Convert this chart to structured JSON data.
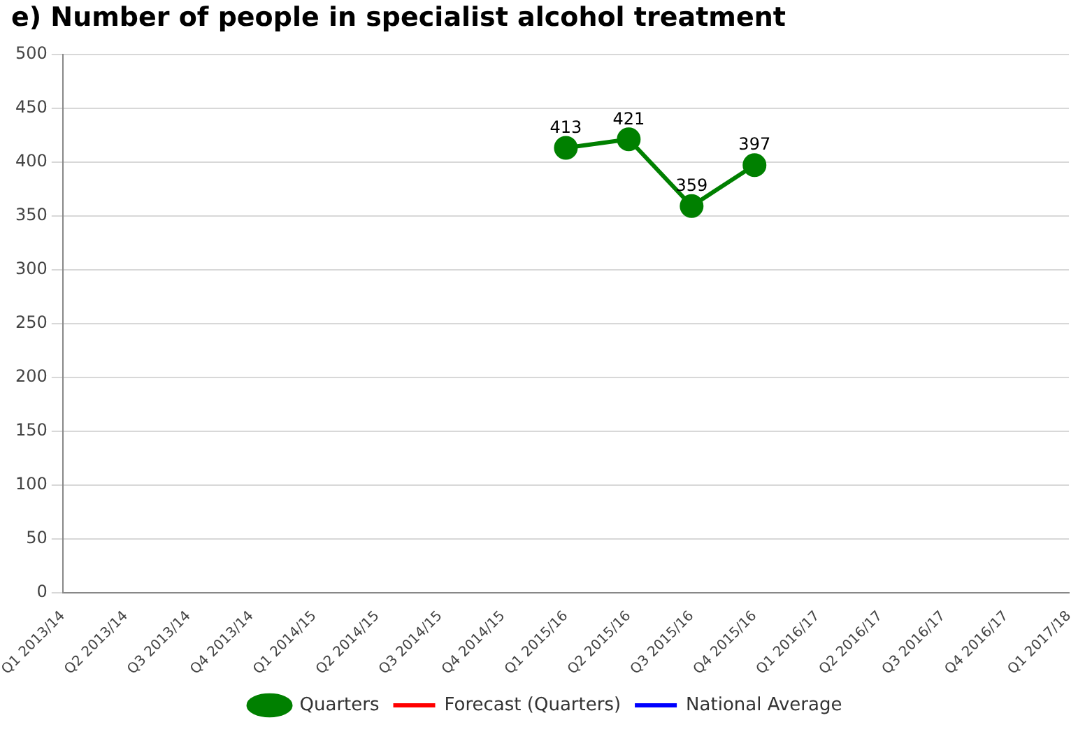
{
  "chart_data": {
    "type": "line",
    "title": "e) Number of people in specialist alcohol treatment",
    "categories": [
      "Q1 2013/14",
      "Q2 2013/14",
      "Q3 2013/14",
      "Q4 2013/14",
      "Q1 2014/15",
      "Q2 2014/15",
      "Q3 2014/15",
      "Q4 2014/15",
      "Q1 2015/16",
      "Q2 2015/16",
      "Q3 2015/16",
      "Q4 2015/16",
      "Q1 2016/17",
      "Q2 2016/17",
      "Q3 2016/17",
      "Q4 2016/17",
      "Q1 2017/18"
    ],
    "series": [
      {
        "name": "Quarters",
        "color": "#008000",
        "marker": "circle",
        "values": [
          null,
          null,
          null,
          null,
          null,
          null,
          null,
          null,
          413,
          421,
          359,
          397,
          null,
          null,
          null,
          null,
          null
        ]
      },
      {
        "name": "Forecast (Quarters)",
        "color": "#ff0000",
        "marker": "none",
        "values": [
          null,
          null,
          null,
          null,
          null,
          null,
          null,
          null,
          null,
          null,
          null,
          null,
          null,
          null,
          null,
          null,
          null
        ]
      },
      {
        "name": "National Average",
        "color": "#0000ff",
        "marker": "none",
        "values": [
          null,
          null,
          null,
          null,
          null,
          null,
          null,
          null,
          null,
          null,
          null,
          null,
          null,
          null,
          null,
          null,
          null
        ]
      }
    ],
    "ylim": [
      0,
      500
    ],
    "yticks": [
      0,
      50,
      100,
      150,
      200,
      250,
      300,
      350,
      400,
      450,
      500
    ],
    "grid": "y",
    "legend": "bottom",
    "data_labels": true
  }
}
